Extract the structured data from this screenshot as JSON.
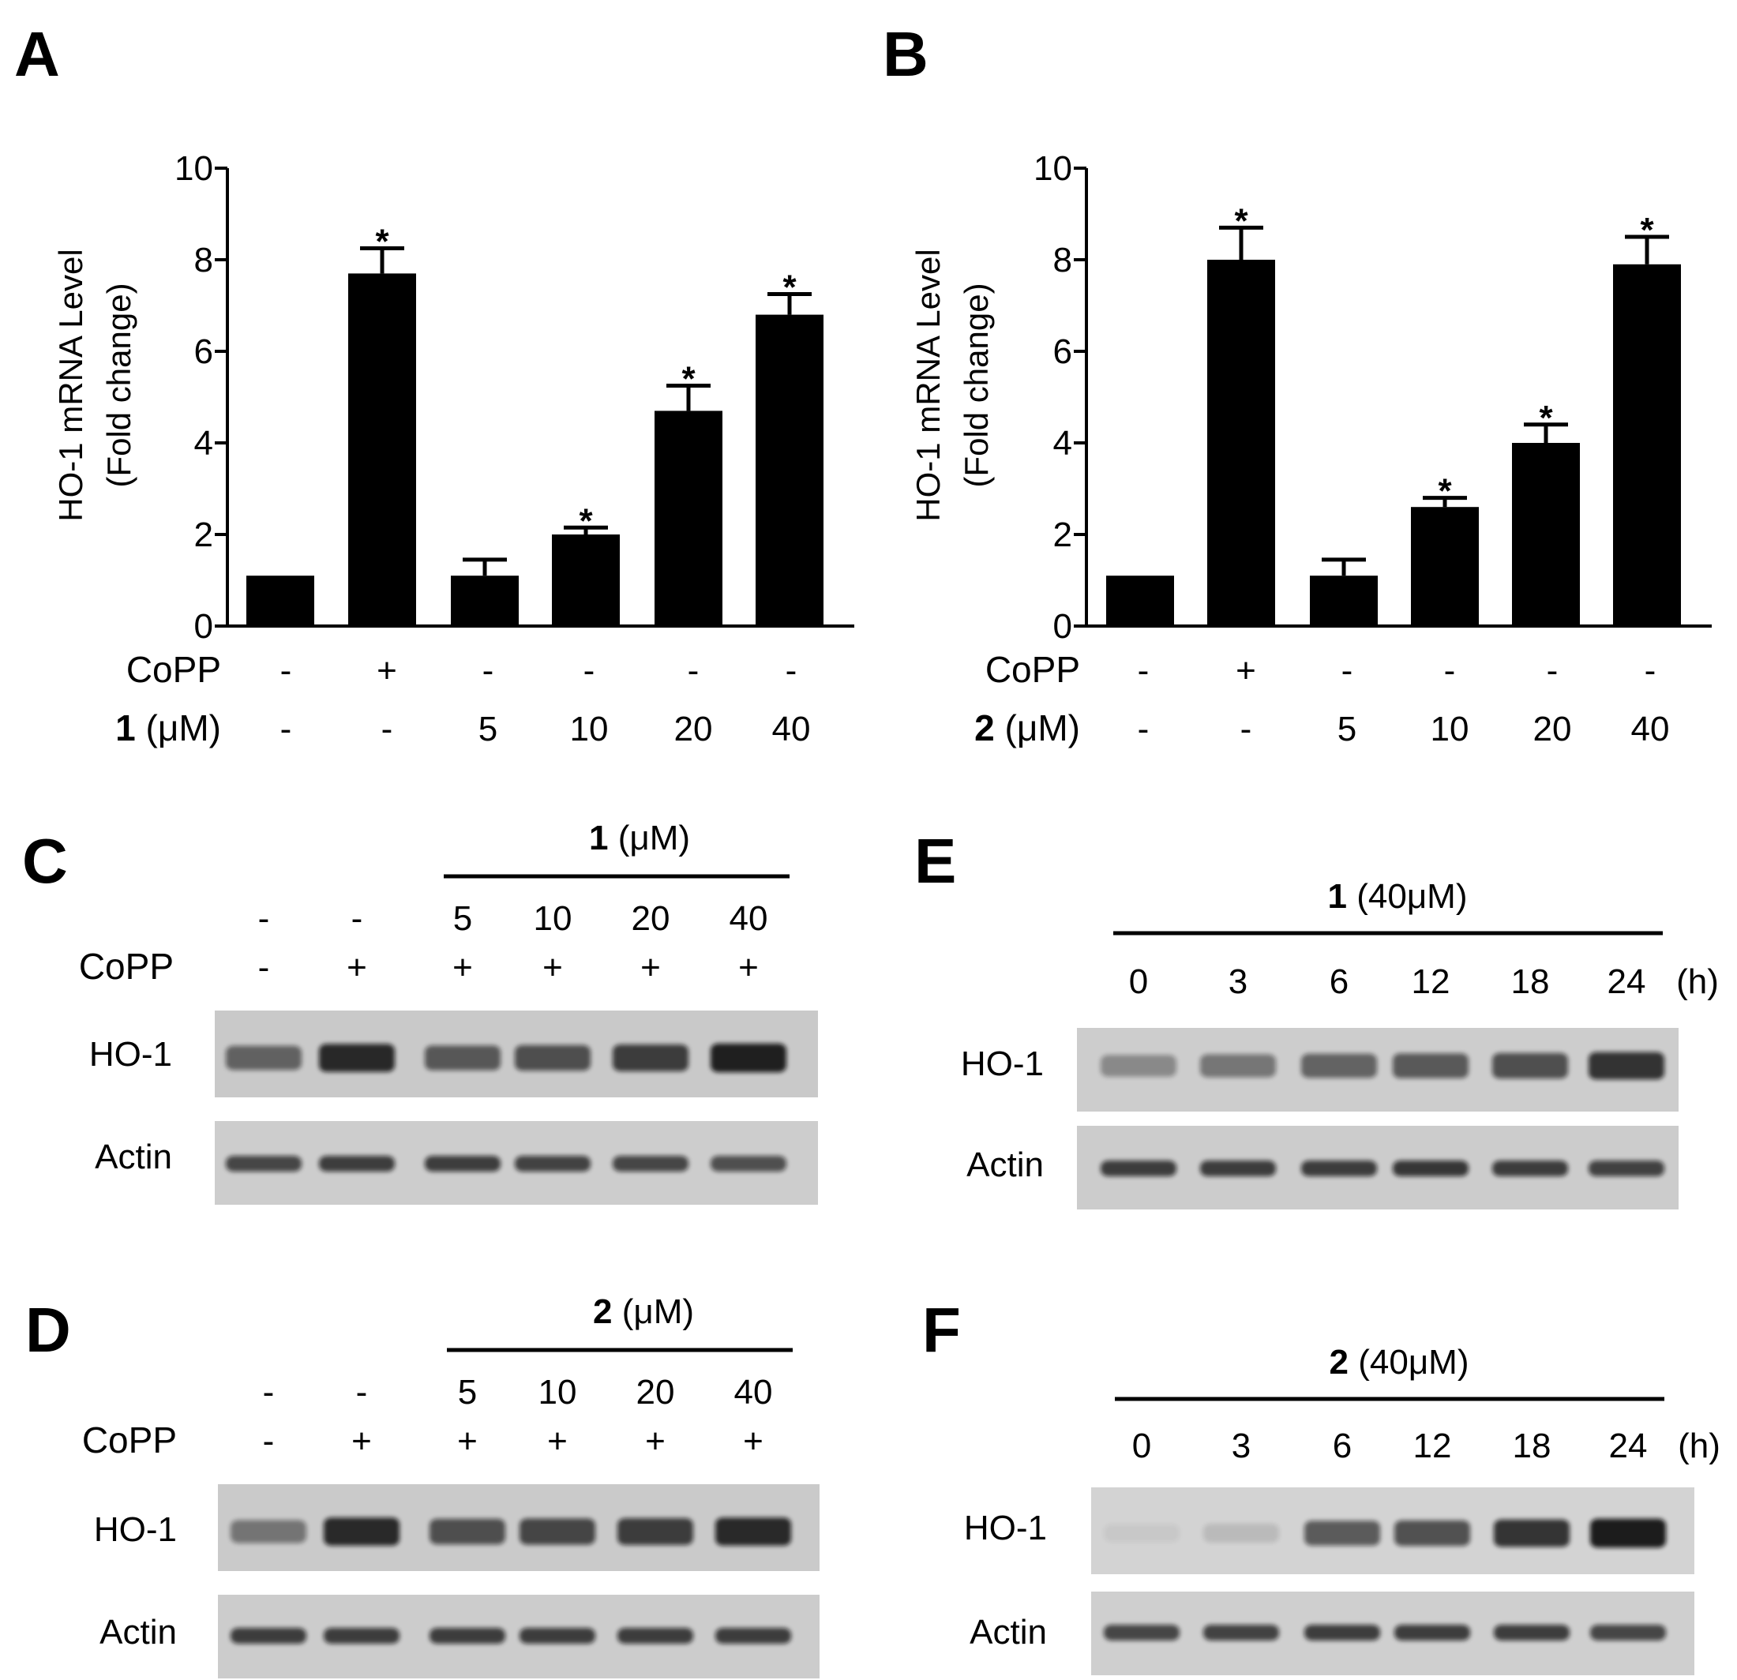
{
  "panels": {
    "A": "A",
    "B": "B",
    "C": "C",
    "D": "D",
    "E": "E",
    "F": "F"
  },
  "chart_data": [
    {
      "type": "bar",
      "panel": "A",
      "ylabel_line1": "HO-1 mRNA Level",
      "ylabel_line2": "(Fold change)",
      "ylim": [
        0,
        10
      ],
      "yticks": [
        "0",
        "2",
        "4",
        "6",
        "8",
        "10"
      ],
      "values": [
        1.1,
        7.7,
        1.1,
        2.0,
        4.7,
        6.8
      ],
      "errors": [
        0.0,
        0.55,
        0.35,
        0.15,
        0.55,
        0.45
      ],
      "significance": [
        "",
        "*",
        "",
        "*",
        "*",
        "*"
      ],
      "rows": [
        {
          "label": "CoPP",
          "label_bold": "",
          "label_rest": "CoPP",
          "values": [
            "-",
            "+",
            "-",
            "-",
            "-",
            "-"
          ]
        },
        {
          "label_bold": "1",
          "label_rest": " (μM)",
          "values": [
            "-",
            "-",
            "5",
            "10",
            "20",
            "40"
          ]
        }
      ]
    },
    {
      "type": "bar",
      "panel": "B",
      "ylabel_line1": "HO-1 mRNA Level",
      "ylabel_line2": "(Fold change)",
      "ylim": [
        0,
        10
      ],
      "yticks": [
        "0",
        "2",
        "4",
        "6",
        "8",
        "10"
      ],
      "values": [
        1.1,
        8.0,
        1.1,
        2.6,
        4.0,
        7.9
      ],
      "errors": [
        0.0,
        0.7,
        0.35,
        0.2,
        0.4,
        0.6
      ],
      "significance": [
        "",
        "*",
        "",
        "*",
        "*",
        "*"
      ],
      "rows": [
        {
          "label_bold": "",
          "label_rest": "CoPP",
          "values": [
            "-",
            "+",
            "-",
            "-",
            "-",
            "-"
          ]
        },
        {
          "label_bold": "2",
          "label_rest": " (μM)",
          "values": [
            "-",
            "-",
            "5",
            "10",
            "20",
            "40"
          ]
        }
      ]
    }
  ],
  "blots": [
    {
      "panel": "C",
      "header_bold": "1",
      "header_rest": " (μM)",
      "row1": [
        "-",
        "-",
        "5",
        "10",
        "20",
        "40"
      ],
      "copp_label": "CoPP",
      "row2": [
        "-",
        "+",
        "+",
        "+",
        "+",
        "+"
      ],
      "band1_label": "HO-1",
      "band2_label": "Actin",
      "band1_intensity": [
        0.55,
        0.85,
        0.6,
        0.65,
        0.75,
        0.9
      ],
      "band2_intensity": [
        0.7,
        0.75,
        0.75,
        0.72,
        0.7,
        0.65
      ]
    },
    {
      "panel": "D",
      "header_bold": "2",
      "header_rest": " (μM)",
      "row1": [
        "-",
        "-",
        "5",
        "10",
        "20",
        "40"
      ],
      "copp_label": "CoPP",
      "row2": [
        "-",
        "+",
        "+",
        "+",
        "+",
        "+"
      ],
      "band1_label": "HO-1",
      "band2_label": "Actin",
      "band1_intensity": [
        0.45,
        0.85,
        0.65,
        0.7,
        0.75,
        0.85
      ],
      "band2_intensity": [
        0.75,
        0.75,
        0.75,
        0.75,
        0.75,
        0.75
      ]
    },
    {
      "panel": "E",
      "header_bold": "1",
      "header_rest": " (40μM)",
      "times": [
        "0",
        "3",
        "6",
        "12",
        "18",
        "24"
      ],
      "time_unit": "(h)",
      "band1_label": "HO-1",
      "band2_label": "Actin",
      "band1_intensity": [
        0.35,
        0.45,
        0.55,
        0.6,
        0.65,
        0.8
      ],
      "band2_intensity": [
        0.75,
        0.75,
        0.75,
        0.78,
        0.75,
        0.72
      ]
    },
    {
      "panel": "F",
      "header_bold": "2",
      "header_rest": " (40μM)",
      "times": [
        "0",
        "3",
        "6",
        "12",
        "18",
        "24"
      ],
      "time_unit": "(h)",
      "band1_label": "HO-1",
      "band2_label": "Actin",
      "band1_intensity": [
        0.05,
        0.12,
        0.6,
        0.65,
        0.8,
        0.92
      ],
      "band2_intensity": [
        0.7,
        0.72,
        0.75,
        0.75,
        0.75,
        0.7
      ]
    }
  ]
}
